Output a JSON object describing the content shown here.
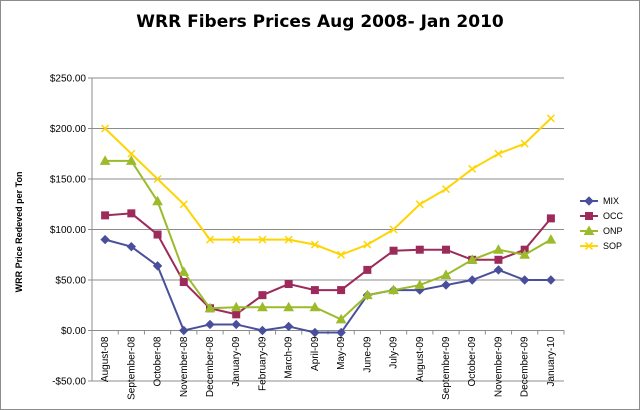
{
  "chart_data": {
    "type": "line",
    "title": "WRR Fibers Prices Aug 2008- Jan 2010",
    "xlabel": "",
    "ylabel": "WRR Price Redeved per Ton",
    "categories": [
      "August-08",
      "September-08",
      "October-08",
      "November-08",
      "December-08",
      "January-09",
      "February-09",
      "March-09",
      "April-09",
      "May-09",
      "June-09",
      "July-09",
      "August-09",
      "September-09",
      "October-09",
      "November-09",
      "December-09",
      "January-10"
    ],
    "ylim": [
      -50,
      250
    ],
    "yticks": [
      -50,
      0,
      50,
      100,
      150,
      200,
      250
    ],
    "ytick_labels": [
      "-$50.00",
      "$0.00",
      "$50.00",
      "$100.00",
      "$150.00",
      "$200.00",
      "$250.00"
    ],
    "grid": "horizontal",
    "legend_position": "right",
    "series": [
      {
        "name": "MIX",
        "color": "#4a4f9c",
        "marker": "diamond",
        "values": [
          90,
          83,
          64,
          0,
          6,
          6,
          0,
          4,
          -2,
          -2,
          35,
          40,
          40,
          45,
          50,
          60,
          50,
          50
        ]
      },
      {
        "name": "OCC",
        "color": "#9c2a5a",
        "marker": "square",
        "values": [
          114,
          116,
          95,
          48,
          22,
          16,
          35,
          46,
          40,
          40,
          60,
          79,
          80,
          80,
          70,
          70,
          80,
          111
        ]
      },
      {
        "name": "ONP",
        "color": "#9cbb2a",
        "marker": "triangle",
        "values": [
          168,
          168,
          128,
          58,
          22,
          23,
          23,
          23,
          23,
          11,
          35,
          40,
          45,
          55,
          70,
          80,
          75,
          90
        ]
      },
      {
        "name": "SOP",
        "color": "#ffd400",
        "marker": "x",
        "values": [
          200,
          175,
          150,
          125,
          90,
          90,
          90,
          90,
          85,
          75,
          85,
          100,
          125,
          140,
          160,
          175,
          185,
          210
        ]
      }
    ]
  }
}
